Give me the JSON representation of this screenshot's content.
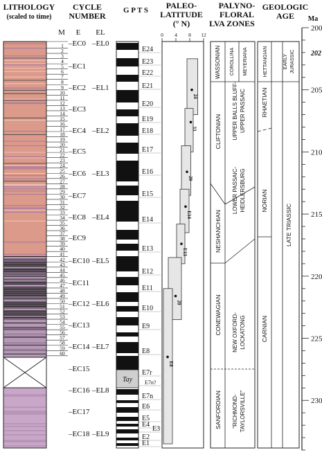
{
  "headers": {
    "lithology_1": "LITHOLOGY",
    "lithology_2": "(scaled to time)",
    "cycle_1": "CYCLE",
    "cycle_2": "NUMBER",
    "gpts": "G P T S",
    "paleo_1": "PALEO-",
    "paleo_2": "LATITUDE",
    "paleo_3": "(° N)",
    "palyno_1": "PALYNO-",
    "palyno_2": "FLORAL",
    "palyno_3": "LVA ZONES",
    "geo_1": "GEOLOGIC",
    "geo_2": "AGE",
    "ma": "Ma"
  },
  "cycle_cols": {
    "m": "M",
    "e": "E",
    "el": "EL"
  },
  "cycle_numbers": [
    "1",
    "2",
    "3",
    "4",
    "5",
    "6",
    "7",
    "8",
    "9",
    "10",
    "11",
    "12",
    "13",
    "14",
    "15",
    "16",
    "17",
    "18",
    "19",
    "20",
    "21",
    "22",
    "23",
    "24",
    "25",
    "26",
    "27",
    "28",
    "29",
    "30",
    "31",
    "32",
    "33",
    "34",
    "35",
    "36",
    "37",
    "38",
    "39",
    "40",
    "41",
    "42",
    "43",
    "44",
    "45",
    "46",
    "47",
    "48",
    "49",
    "50",
    "51",
    "52",
    "53",
    "54",
    "55",
    "56",
    "57",
    "58",
    "59",
    "60"
  ],
  "e_cycles": [
    "EC0",
    "EC1",
    "EC2",
    "EC3",
    "EC4",
    "EC5",
    "EC6",
    "EC7",
    "EC8",
    "EC9",
    "EC10",
    "EC11",
    "EC12",
    "EC13",
    "EC14",
    "EC15",
    "EC16",
    "EC17",
    "EC18"
  ],
  "el_cycles": [
    "EL0",
    "EL1",
    "EL2",
    "EL3",
    "EL4",
    "EL5",
    "EL6",
    "EL7",
    "EL8",
    "EL9"
  ],
  "gpts_chrons": [
    "E24",
    "E23",
    "E22",
    "E21",
    "E20",
    "E19",
    "E18",
    "E17",
    "E16",
    "E15",
    "E14",
    "E13",
    "E12",
    "E11",
    "E10",
    "E9",
    "E8",
    "E7r",
    "E7n?",
    "E7n",
    "E6",
    "E5",
    "E4",
    "E3",
    "E2",
    "E1"
  ],
  "tay_label": "Tay",
  "paleo_ticks": [
    "0",
    "4",
    "8",
    "12"
  ],
  "paleo_points": [
    {
      "label": "24",
      "lat": 8.6,
      "age": 205.0
    },
    {
      "label": "33",
      "lat": 8.3,
      "age": 207.6
    },
    {
      "label": "20",
      "lat": 7.2,
      "age": 211.6
    },
    {
      "label": "E14",
      "lat": 6.8,
      "age": 214.4
    },
    {
      "label": "E13",
      "lat": 5.6,
      "age": 217.4
    },
    {
      "label": "20",
      "lat": 3.9,
      "age": 221.6
    },
    {
      "label": "E8",
      "lat": 1.6,
      "age": 226.5
    }
  ],
  "palyno_zones": {
    "wassonian": "WASSONIAN",
    "corollina": "COROLLINA",
    "meyeriana": "MEYERIANA",
    "cliftonian": "CLIFTONIAN",
    "neshanchian": "NESHANCHIAN",
    "conewagian": "CONEWAGIAN",
    "sanfordian": "SANFORDIAN",
    "upper_balls_1": "UPPER BALLS BLUFF-",
    "upper_balls_2": "UPPER PASSAIC",
    "lower_passaic_1": "LOWER PASSAIC-",
    "lower_passaic_2": "HEIDLERSBURG",
    "new_oxford_1": "NEW OXFORD-",
    "new_oxford_2": "LOCKATONG",
    "richmond_1": "\"RICHMOND-",
    "richmond_2": "TAYLORSVILLE\""
  },
  "geologic_age": {
    "hettangian": "HETTANGIAN",
    "early_1": "EARLY",
    "early_2": "JURASSIC",
    "rhaetian": "RHAETIAN",
    "norian": "NORIAN",
    "carnian": "CARNIAN",
    "late_triassic": "LATE TRIASSIC"
  },
  "ma_scale": {
    "ticks": [
      "200",
      "202",
      "205",
      "210",
      "215",
      "220",
      "225",
      "230"
    ],
    "range": [
      200,
      234
    ],
    "boundary": "202"
  }
}
